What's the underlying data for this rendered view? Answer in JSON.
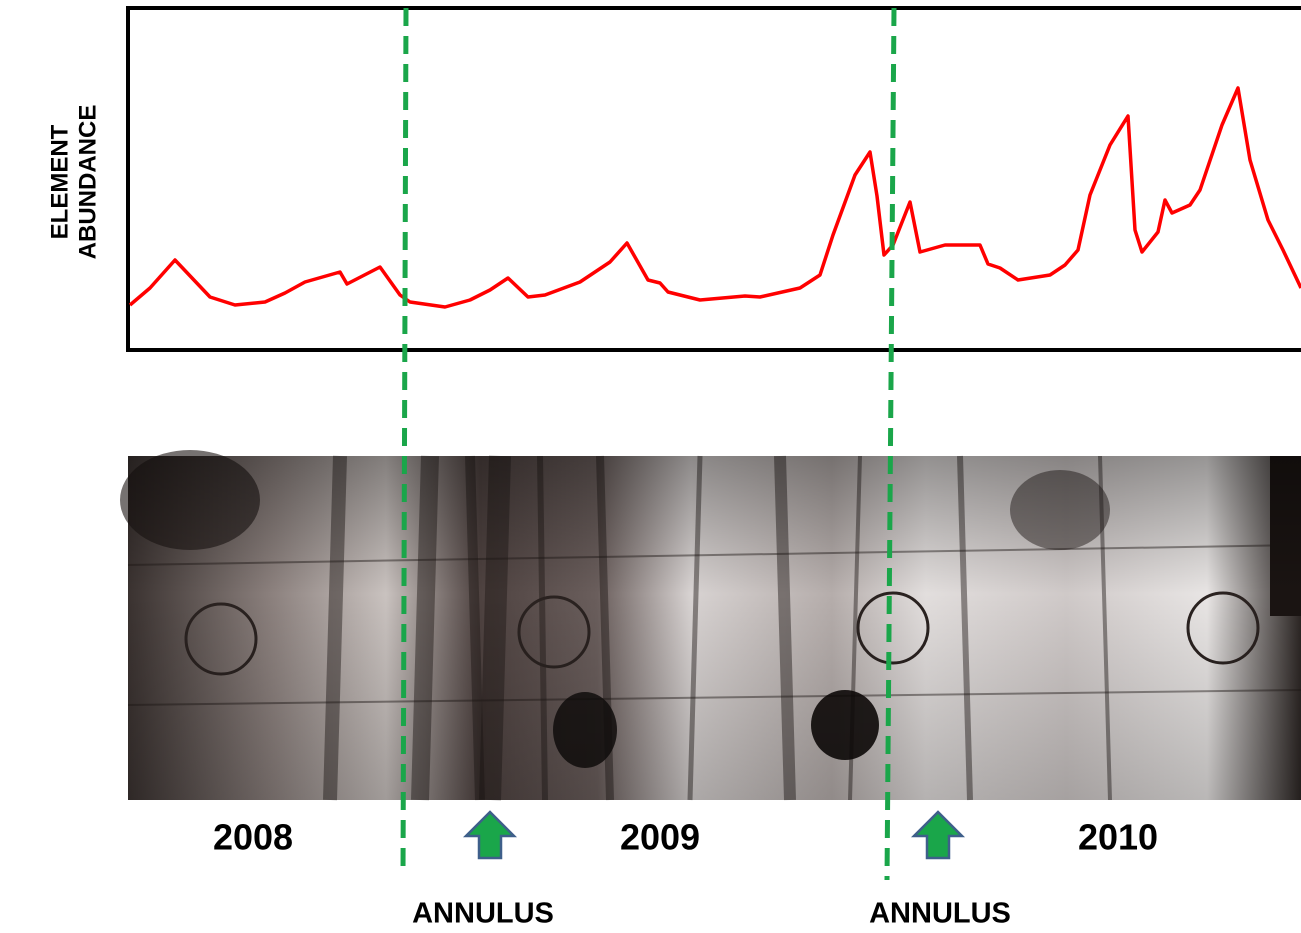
{
  "y_axis_label": [
    "ELEMENT",
    "ABUNDANCE"
  ],
  "years": [
    "2008",
    "2009",
    "2010"
  ],
  "annotations": [
    "ANNULUS",
    "ANNULUS"
  ]
}
